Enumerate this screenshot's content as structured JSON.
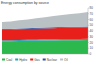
{
  "chart_data": {
    "type": "area",
    "title": "Energy consumption by source",
    "stacked": true,
    "legend": "bottom",
    "grid": false,
    "tick_labels": "y",
    "x": [
      1990,
      1993,
      1996,
      1999,
      2002,
      2005,
      2008,
      2011,
      2014,
      2017,
      2020
    ],
    "xlim": [
      1990,
      2020
    ],
    "ylim": [
      0,
      80
    ],
    "yticks": [
      0,
      10,
      20,
      30,
      40,
      50,
      60,
      70,
      80
    ],
    "series": [
      {
        "name": "Coal",
        "color": "#2db84d",
        "values": [
          22,
          22,
          22.5,
          23,
          23,
          23.5,
          23.5,
          24,
          24,
          24,
          24.5
        ]
      },
      {
        "name": "Hydro",
        "color": "#29a3b8",
        "values": [
          2,
          2,
          2,
          2,
          2,
          2,
          2,
          2,
          2,
          2,
          2
        ]
      },
      {
        "name": "Gas",
        "color": "#e8201b",
        "values": [
          18,
          18,
          18.5,
          18.5,
          19,
          19,
          19.5,
          19.5,
          20,
          20,
          20
        ]
      },
      {
        "name": "Nuclear",
        "color": "#2f4f9e",
        "values": [
          1.5,
          1.5,
          1.5,
          1.5,
          1.5,
          1.5,
          1.5,
          1.5,
          1.5,
          1.5,
          1.5
        ]
      },
      {
        "name": "Oil",
        "color": "#b9c1c4",
        "values": [
          12,
          13,
          14,
          15,
          16.5,
          18,
          19.5,
          21,
          22,
          23.5,
          25
        ]
      }
    ]
  }
}
